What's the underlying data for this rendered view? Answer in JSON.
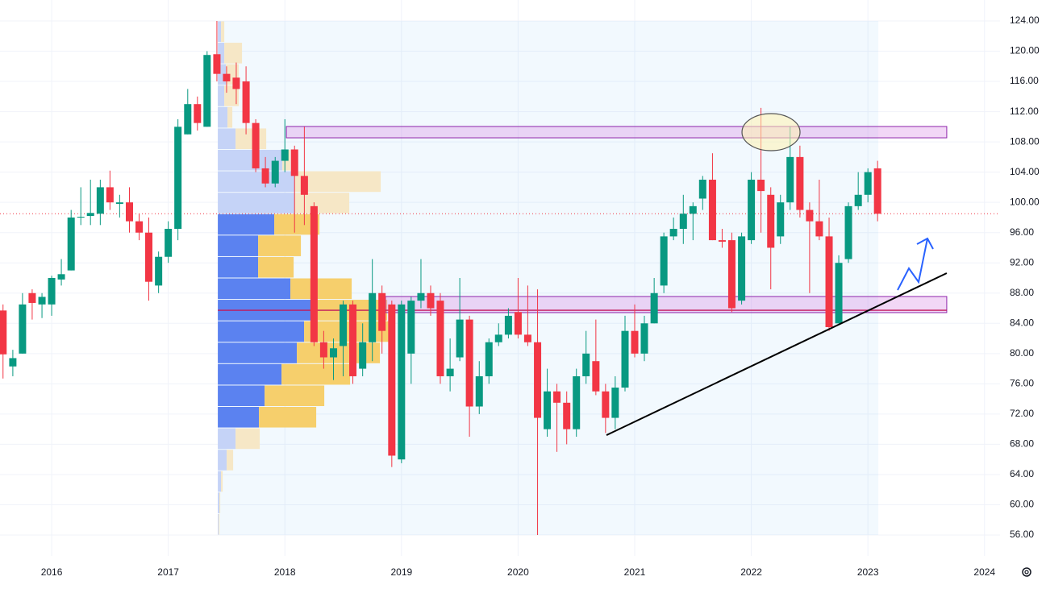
{
  "chart_data": {
    "type": "candlestick",
    "x": [
      2015.583,
      2015.667,
      2015.75,
      2015.833,
      2015.917,
      2016,
      2016.083,
      2016.167,
      2016.25,
      2016.333,
      2016.417,
      2016.5,
      2016.583,
      2016.667,
      2016.75,
      2016.833,
      2016.917,
      2017,
      2017.083,
      2017.167,
      2017.25,
      2017.333,
      2017.417,
      2017.5,
      2017.583,
      2017.667,
      2017.75,
      2017.833,
      2017.917,
      2018,
      2018.083,
      2018.167,
      2018.25,
      2018.333,
      2018.417,
      2018.5,
      2018.583,
      2018.667,
      2018.75,
      2018.833,
      2018.917,
      2019,
      2019.083,
      2019.167,
      2019.25,
      2019.333,
      2019.417,
      2019.5,
      2019.583,
      2019.667,
      2019.75,
      2019.833,
      2019.917,
      2020,
      2020.083,
      2020.167,
      2020.25,
      2020.333,
      2020.417,
      2020.5,
      2020.583,
      2020.667,
      2020.75,
      2020.833,
      2020.917,
      2021,
      2021.083,
      2021.167,
      2021.25,
      2021.333,
      2021.417,
      2021.5,
      2021.583,
      2021.667,
      2021.75,
      2021.833,
      2021.917,
      2022,
      2022.083,
      2022.167,
      2022.25,
      2022.333,
      2022.417,
      2022.5,
      2022.583,
      2022.667,
      2022.75,
      2022.833,
      2022.917,
      2023,
      2023.083
    ],
    "open": [
      85.7,
      78.3,
      80,
      88,
      86.5,
      86.5,
      89.8,
      91,
      98,
      98.2,
      98.5,
      102,
      99.8,
      100,
      97.5,
      96,
      89,
      92.8,
      96.5,
      109,
      113,
      110,
      119.6,
      117,
      116.5,
      116,
      110.5,
      104.5,
      102.5,
      105.5,
      107,
      103.5,
      99.5,
      81.5,
      79.5,
      81,
      86.5,
      78,
      81.5,
      88,
      86.5,
      66,
      80,
      87,
      88,
      87,
      77,
      79.5,
      84.5,
      73,
      77,
      81.5,
      82.5,
      85.5,
      82.5,
      81.5,
      70,
      75,
      73.5,
      70,
      77,
      79,
      75,
      71.5,
      75.5,
      83,
      80,
      84,
      89,
      95.5,
      96.5,
      98.5,
      100.5,
      103,
      95,
      95,
      87,
      95,
      103,
      101,
      95.5,
      100,
      106,
      99,
      97.5,
      95.5,
      84,
      92.5,
      99.5,
      101,
      104.5
    ],
    "high": [
      86.5,
      80.5,
      88,
      88.5,
      88,
      90.3,
      92.5,
      99,
      102,
      103,
      103,
      104.2,
      101,
      102,
      98.5,
      98,
      93.5,
      97.5,
      111,
      115,
      114,
      120,
      124,
      118,
      118.5,
      118,
      111,
      106,
      106,
      111,
      107.5,
      110,
      100,
      83,
      82,
      87,
      87,
      84,
      92.5,
      89,
      87,
      87,
      87.5,
      92.5,
      89,
      88,
      82,
      90,
      85,
      79,
      82,
      84,
      86,
      90,
      89,
      88.5,
      78,
      76,
      75,
      78,
      83,
      84.5,
      76,
      77,
      85,
      86.5,
      85,
      90,
      96,
      98,
      101,
      100,
      103.5,
      106.5,
      96.5,
      96,
      96,
      104,
      112.5,
      102,
      101,
      110,
      107.5,
      100,
      103,
      98,
      93,
      100,
      104,
      104.5,
      105.5
    ],
    "low": [
      76.7,
      77,
      80,
      84.5,
      84.7,
      85,
      89,
      91,
      97,
      97,
      97,
      99,
      98,
      96,
      95,
      87,
      88,
      92,
      95,
      109,
      109.5,
      110,
      116,
      114.5,
      113,
      109,
      104,
      102,
      102,
      104,
      96,
      97,
      81,
      78,
      76.5,
      77,
      76,
      77,
      79,
      80,
      65,
      65.5,
      76,
      86,
      85,
      76,
      75,
      79,
      69,
      72,
      76,
      81,
      82,
      82,
      81,
      56,
      69,
      67,
      68,
      69,
      76,
      74.5,
      69.5,
      70,
      75,
      79.5,
      79,
      84,
      88,
      95,
      94.5,
      95,
      99,
      95,
      94,
      85.5,
      86.5,
      94.5,
      96,
      88.5,
      94.5,
      99,
      98,
      88,
      95,
      83,
      84,
      92,
      99,
      100,
      97.5
    ],
    "close": [
      79.9,
      79.4,
      86.5,
      86.7,
      87.5,
      90,
      90.5,
      98,
      98.1,
      98.6,
      102,
      100,
      100,
      97.5,
      96,
      89.5,
      92.8,
      96.5,
      110,
      113,
      110.5,
      119.5,
      117,
      116,
      115,
      110.5,
      104.5,
      102.5,
      105.5,
      107,
      103.5,
      101,
      81.5,
      79.5,
      80.7,
      86.5,
      77,
      81.5,
      88,
      83,
      66.5,
      86.5,
      87,
      88,
      86,
      77,
      78,
      84.5,
      73,
      77,
      81.5,
      82.5,
      85,
      82.5,
      81.5,
      71.5,
      75,
      73.5,
      70,
      77,
      80,
      75,
      71.5,
      75.5,
      83,
      80,
      84,
      88,
      95.5,
      96.5,
      98.5,
      99.5,
      103,
      95,
      94.8,
      86,
      95.5,
      103,
      101.5,
      94,
      100,
      106,
      99,
      97.5,
      95.5,
      83.5,
      92,
      99.5,
      101,
      104,
      98.5
    ],
    "up_color": "#089981",
    "down_color": "#f23645",
    "xlim": [
      2015.557,
      2024.133
    ],
    "xticks": [
      2016,
      2017,
      2018,
      2019,
      2020,
      2021,
      2022,
      2023,
      2024
    ],
    "ylim": [
      53.23,
      126.77
    ],
    "yticks": [
      {
        "value": 56,
        "label": "56.00"
      },
      {
        "value": 60,
        "label": "60.00"
      },
      {
        "value": 64,
        "label": "64.00"
      },
      {
        "value": 68,
        "label": "68.00"
      },
      {
        "value": 72,
        "label": "72.00"
      },
      {
        "value": 76,
        "label": "76.00"
      },
      {
        "value": 80,
        "label": "80.00"
      },
      {
        "value": 84,
        "label": "84.00"
      },
      {
        "value": 88,
        "label": "88.00"
      },
      {
        "value": 92,
        "label": "92.00"
      },
      {
        "value": 96,
        "label": "96.00"
      },
      {
        "value": 100,
        "label": "100.00"
      },
      {
        "value": 104,
        "label": "104.00"
      },
      {
        "value": 108,
        "label": "108.00"
      },
      {
        "value": 112,
        "label": "112.00"
      },
      {
        "value": 116,
        "label": "116.00"
      },
      {
        "value": 120,
        "label": "120.00"
      },
      {
        "value": 124,
        "label": "124.00"
      }
    ],
    "grid": true,
    "volume_profile": {
      "range": [
        2017.425,
        2023.089
      ],
      "price_bins": [
        56,
        58.83,
        61.67,
        64.5,
        67.33,
        70.17,
        73,
        75.83,
        78.67,
        81.5,
        84.33,
        87.17,
        90,
        92.83,
        95.67,
        98.5,
        101.33,
        104.17,
        107,
        109.83,
        112.67,
        115.5,
        118.33,
        121.17,
        124
      ],
      "buy": [
        1,
        2,
        4,
        11,
        22,
        51,
        58,
        79,
        98,
        107,
        115,
        90,
        50,
        50,
        70,
        95,
        95,
        80,
        22,
        12,
        8,
        10,
        8,
        4
      ],
      "sell": [
        1,
        1,
        2,
        8,
        30,
        71,
        74,
        85,
        103,
        105,
        95,
        76,
        44,
        53,
        56,
        68,
        107,
        10,
        38,
        6,
        18,
        16,
        22,
        4
      ],
      "value_area": [
        70.17,
        98.5
      ],
      "poc": 85.73
    },
    "zones": [
      {
        "x": [
          2018.013,
          2023.676
        ],
        "y": [
          108.54,
          110.04
        ]
      },
      {
        "x": [
          2018.863,
          2023.676
        ],
        "y": [
          85.42,
          87.55
        ]
      }
    ],
    "trendline": {
      "x": [
        2020.758,
        2023.676
      ],
      "y": [
        69.21,
        90.64
      ]
    },
    "ellipse": {
      "x": 2022.169,
      "y": 109.29
    }
  }
}
